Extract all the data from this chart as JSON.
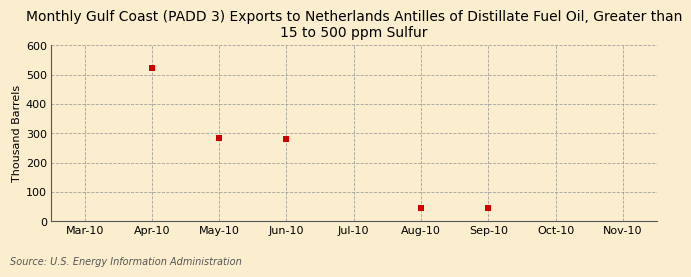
{
  "title": "Monthly Gulf Coast (PADD 3) Exports to Netherlands Antilles of Distillate Fuel Oil, Greater than\n15 to 500 ppm Sulfur",
  "ylabel": "Thousand Barrels",
  "source": "Source: U.S. Energy Information Administration",
  "x_labels": [
    "Mar-10",
    "Apr-10",
    "May-10",
    "Jun-10",
    "Jul-10",
    "Aug-10",
    "Sep-10",
    "Oct-10",
    "Nov-10"
  ],
  "x_values": [
    0,
    1,
    2,
    3,
    4,
    5,
    6,
    7,
    8
  ],
  "data_x": [
    1,
    2,
    3,
    5,
    6
  ],
  "data_y": [
    522,
    284,
    280,
    47,
    46
  ],
  "ylim": [
    0,
    600
  ],
  "yticks": [
    0,
    100,
    200,
    300,
    400,
    500,
    600
  ],
  "marker_color": "#cc0000",
  "marker_size": 4,
  "marker_style": "s",
  "grid_color": "#999999",
  "background_color": "#faeece",
  "plot_background_color": "#faeece",
  "title_fontsize": 10,
  "axis_fontsize": 8,
  "tick_fontsize": 8,
  "source_fontsize": 7
}
